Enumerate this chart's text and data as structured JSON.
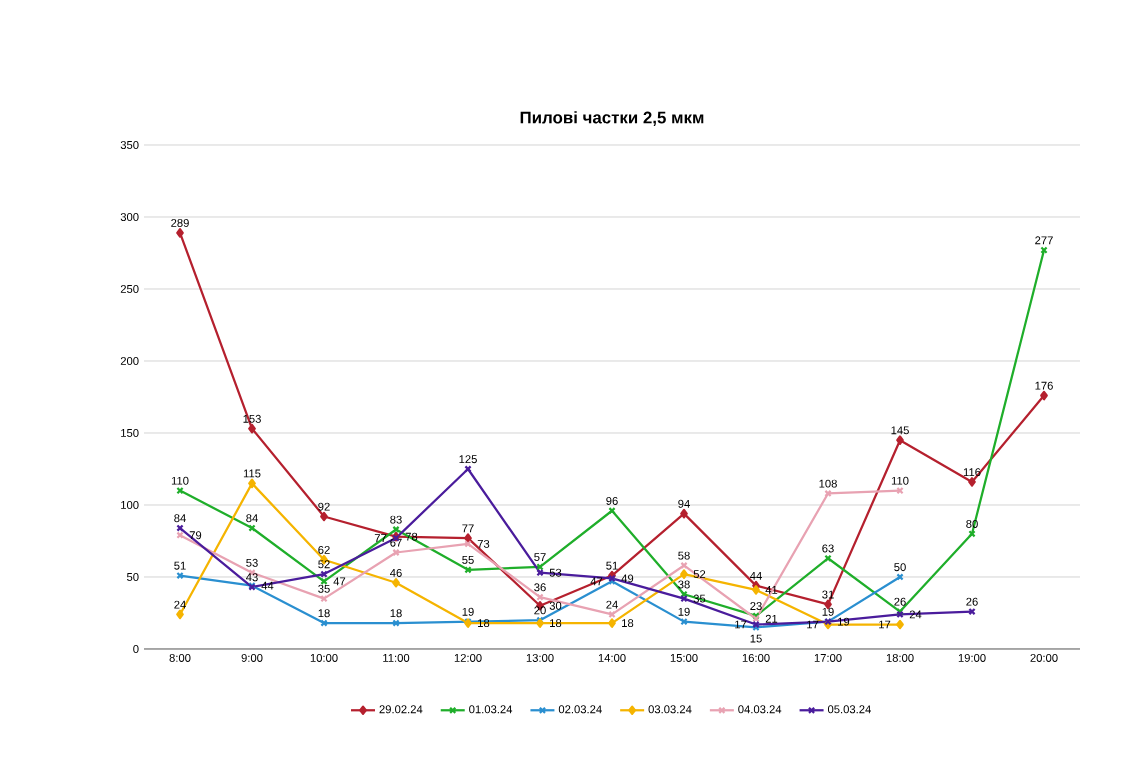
{
  "chart_data": {
    "type": "line",
    "title": "Пилові частки 2,5 мкм",
    "categories": [
      "8:00",
      "9:00",
      "10:00",
      "11:00",
      "12:00",
      "13:00",
      "14:00",
      "15:00",
      "16:00",
      "17:00",
      "18:00",
      "19:00",
      "20:00"
    ],
    "series": [
      {
        "name": "29.02.24",
        "color": "#b5202e",
        "marker": "diamond",
        "values": [
          289,
          153,
          92,
          78,
          77,
          30,
          51,
          94,
          44,
          31,
          145,
          116,
          176
        ]
      },
      {
        "name": "01.03.24",
        "color": "#1fae2a",
        "marker": "cross",
        "values": [
          110,
          84,
          47,
          83,
          55,
          57,
          96,
          38,
          23,
          63,
          26,
          80,
          277
        ]
      },
      {
        "name": "02.03.24",
        "color": "#2a8fd0",
        "marker": "cross",
        "values": [
          51,
          44,
          18,
          18,
          19,
          20,
          47,
          19,
          15,
          19,
          50,
          null,
          null
        ]
      },
      {
        "name": "03.03.24",
        "color": "#f5b400",
        "marker": "diamond",
        "values": [
          24,
          115,
          62,
          46,
          18,
          18,
          18,
          52,
          41,
          17,
          17,
          null,
          null
        ]
      },
      {
        "name": "04.03.24",
        "color": "#e8a2b2",
        "marker": "cross",
        "values": [
          79,
          53,
          35,
          67,
          73,
          36,
          24,
          58,
          21,
          108,
          110,
          null,
          null
        ]
      },
      {
        "name": "05.03.24",
        "color": "#4a1c9c",
        "marker": "cross",
        "values": [
          84,
          43,
          52,
          77,
          125,
          53,
          49,
          35,
          17,
          19,
          24,
          26,
          null
        ]
      }
    ],
    "ylim": [
      0,
      350
    ],
    "yticks": [
      0,
      50,
      100,
      150,
      200,
      250,
      300,
      350
    ],
    "grid": "y",
    "legend": "bottom",
    "data_labels": true,
    "line_style": "solid"
  }
}
